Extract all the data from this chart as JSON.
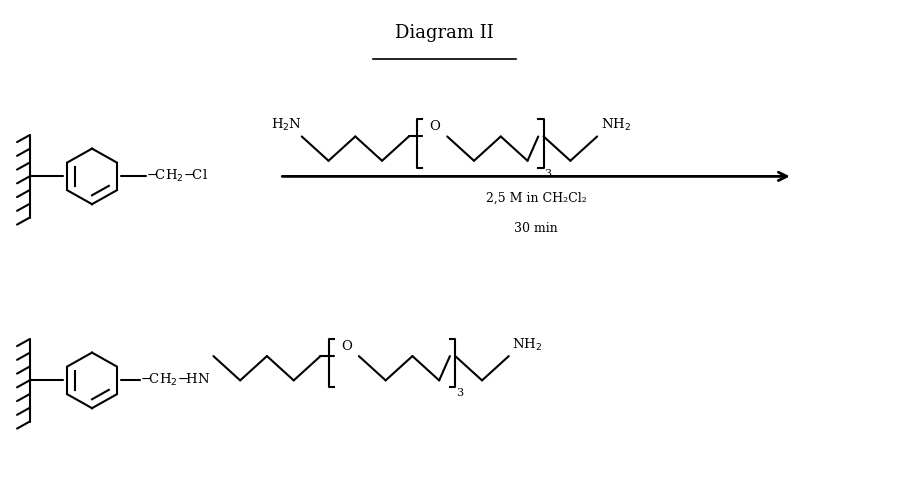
{
  "title": "Diagram II",
  "background_color": "#ffffff",
  "line_color": "#000000",
  "fig_width": 8.98,
  "fig_height": 4.83,
  "dpi": 100,
  "reaction_conditions_line1": "2,5 M in CH₂Cl₂",
  "reaction_conditions_line2": "30 min"
}
